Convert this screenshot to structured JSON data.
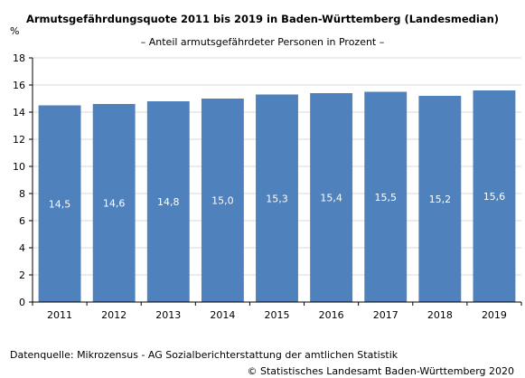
{
  "chart_data": {
    "type": "bar",
    "title": "Armutsgefährdungsquote 2011 bis 2019 in Baden-Württemberg (Landesmedian)",
    "subtitle": "– Anteil armutsgefährdeter Personen in Prozent –",
    "ylabel": "%",
    "xlabel": "",
    "categories": [
      "2011",
      "2012",
      "2013",
      "2014",
      "2015",
      "2016",
      "2017",
      "2018",
      "2019"
    ],
    "values": [
      14.5,
      14.6,
      14.8,
      15.0,
      15.3,
      15.4,
      15.5,
      15.2,
      15.6
    ],
    "value_labels": [
      "14,5",
      "14,6",
      "14,8",
      "15,0",
      "15,3",
      "15,4",
      "15,5",
      "15,2",
      "15,6"
    ],
    "ylim": [
      0,
      18
    ],
    "yticks": [
      0,
      2,
      4,
      6,
      8,
      10,
      12,
      14,
      16,
      18
    ],
    "grid": "horizontal",
    "legend": "none",
    "bar_color": "#4f81bd",
    "grid_color": "#d9d9d9"
  },
  "footer": {
    "source": "Datenquelle: Mikrozensus - AG Sozialberichterstattung der amtlichen Statistik",
    "copyright": "© Statistisches Landesamt Baden-Württemberg 2020"
  }
}
